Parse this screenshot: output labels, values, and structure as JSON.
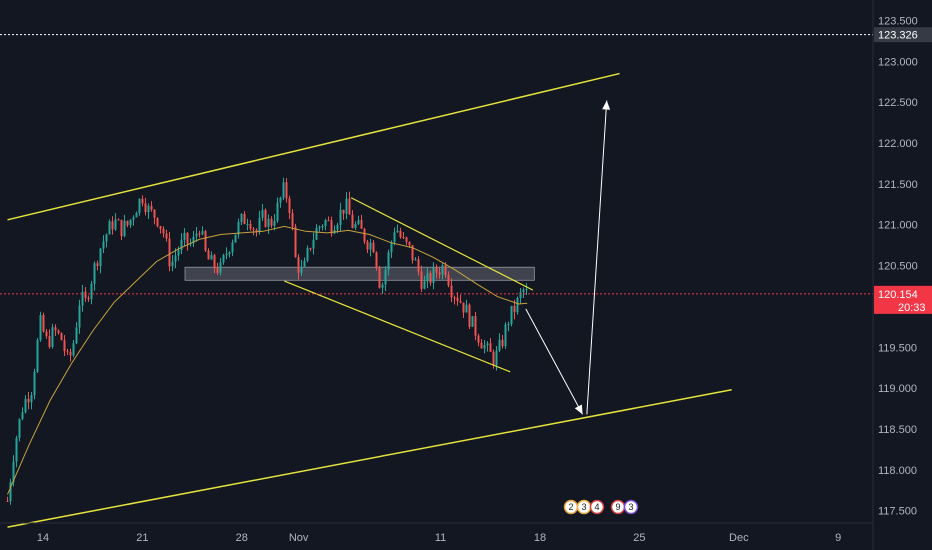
{
  "chart_data": {
    "type": "candlestick",
    "instrument_last_price": "120.154",
    "last_price_value": 120.154,
    "countdown": "20:33",
    "crosshair_price": "123.326",
    "crosshair_value": 123.326,
    "ylim": [
      117.35,
      123.75
    ],
    "y_ticks": [
      {
        "value": 117.5,
        "label": "117.500"
      },
      {
        "value": 118.0,
        "label": "118.000"
      },
      {
        "value": 118.5,
        "label": "118.500"
      },
      {
        "value": 119.0,
        "label": "119.000"
      },
      {
        "value": 119.5,
        "label": "119.500"
      },
      {
        "value": 120.0,
        "label": "120.000"
      },
      {
        "value": 120.5,
        "label": "120.500"
      },
      {
        "value": 121.0,
        "label": "121.000"
      },
      {
        "value": 121.5,
        "label": "121.500"
      },
      {
        "value": 122.0,
        "label": "122.000"
      },
      {
        "value": 122.5,
        "label": "122.500"
      },
      {
        "value": 123.0,
        "label": "123.000"
      },
      {
        "value": 123.5,
        "label": "123.500"
      }
    ],
    "x_day_range": [
      11.5,
      42.6
    ],
    "x_ticks": [
      {
        "day": 14,
        "label": "14"
      },
      {
        "day": 21,
        "label": "21"
      },
      {
        "day": 28,
        "label": "28"
      },
      {
        "day": 32,
        "label": "Nov"
      },
      {
        "day": 42,
        "label": "11"
      },
      {
        "day": 49,
        "label": "18"
      },
      {
        "day": 56,
        "label": "25"
      },
      {
        "day": 63,
        "label": "Dec"
      },
      {
        "day": 70,
        "label": "9"
      }
    ],
    "price_path": [
      [
        11.5,
        117.62
      ],
      [
        12.0,
        118.3
      ],
      [
        12.6,
        118.8
      ],
      [
        13.2,
        119.0
      ],
      [
        13.8,
        119.8
      ],
      [
        14.3,
        119.55
      ],
      [
        14.8,
        119.7
      ],
      [
        15.3,
        119.6
      ],
      [
        15.8,
        119.3
      ],
      [
        16.2,
        119.6
      ],
      [
        16.6,
        120.1
      ],
      [
        17.0,
        120.05
      ],
      [
        17.5,
        120.4
      ],
      [
        18.0,
        120.7
      ],
      [
        18.5,
        120.9
      ],
      [
        19.0,
        121.05
      ],
      [
        19.5,
        120.95
      ],
      [
        20.0,
        121.0
      ],
      [
        20.5,
        121.2
      ],
      [
        21.0,
        121.35
      ],
      [
        21.5,
        121.15
      ],
      [
        22.0,
        121.1
      ],
      [
        22.5,
        120.9
      ],
      [
        23.0,
        120.5
      ],
      [
        23.5,
        120.7
      ],
      [
        24.0,
        120.8
      ],
      [
        24.5,
        120.75
      ],
      [
        25.0,
        121.0
      ],
      [
        25.5,
        120.6
      ],
      [
        26.0,
        120.5
      ],
      [
        26.5,
        120.45
      ],
      [
        27.0,
        120.7
      ],
      [
        27.5,
        120.9
      ],
      [
        28.0,
        121.05
      ],
      [
        28.5,
        121.1
      ],
      [
        29.0,
        120.9
      ],
      [
        29.5,
        121.1
      ],
      [
        30.0,
        121.0
      ],
      [
        30.5,
        121.2
      ],
      [
        31.0,
        121.45
      ],
      [
        31.4,
        121.2
      ],
      [
        31.8,
        120.55
      ],
      [
        32.3,
        120.4
      ],
      [
        32.8,
        120.75
      ],
      [
        33.3,
        120.95
      ],
      [
        33.8,
        121.05
      ],
      [
        34.3,
        121.0
      ],
      [
        34.8,
        121.1
      ],
      [
        35.3,
        121.25
      ],
      [
        35.8,
        121.0
      ],
      [
        36.3,
        120.95
      ],
      [
        36.8,
        120.8
      ],
      [
        37.3,
        120.75
      ],
      [
        37.8,
        120.2
      ],
      [
        38.3,
        120.6
      ],
      [
        38.8,
        121.0
      ],
      [
        39.3,
        120.8
      ],
      [
        39.8,
        120.7
      ],
      [
        40.3,
        120.5
      ],
      [
        40.8,
        120.25
      ],
      [
        41.3,
        120.35
      ],
      [
        41.8,
        120.45
      ],
      [
        42.3,
        120.5
      ],
      [
        42.8,
        120.2
      ],
      [
        43.3,
        120.1
      ],
      [
        43.8,
        119.95
      ],
      [
        44.3,
        119.75
      ],
      [
        44.8,
        119.6
      ],
      [
        45.3,
        119.45
      ],
      [
        45.8,
        119.35
      ],
      [
        46.3,
        119.55
      ],
      [
        46.8,
        119.85
      ],
      [
        47.3,
        120.0
      ],
      [
        47.8,
        120.2
      ],
      [
        48.1,
        120.15
      ]
    ],
    "moving_average": [
      [
        11.5,
        117.7
      ],
      [
        13,
        118.3
      ],
      [
        14.5,
        118.85
      ],
      [
        16,
        119.3
      ],
      [
        17.5,
        119.7
      ],
      [
        19,
        120.05
      ],
      [
        20.5,
        120.3
      ],
      [
        22,
        120.55
      ],
      [
        23.5,
        120.7
      ],
      [
        25,
        120.82
      ],
      [
        26.5,
        120.88
      ],
      [
        28,
        120.9
      ],
      [
        29.5,
        120.92
      ],
      [
        31,
        120.98
      ],
      [
        32.5,
        120.92
      ],
      [
        34,
        120.9
      ],
      [
        35.5,
        120.93
      ],
      [
        37,
        120.88
      ],
      [
        38.5,
        120.78
      ],
      [
        40,
        120.72
      ],
      [
        41.5,
        120.6
      ],
      [
        43,
        120.45
      ],
      [
        44.5,
        120.28
      ],
      [
        46,
        120.12
      ],
      [
        47.5,
        120.03
      ],
      [
        48.1,
        120.04
      ]
    ],
    "drawings": {
      "upper_channel": {
        "from": [
          11.5,
          121.06
        ],
        "to": [
          54.6,
          122.85
        ]
      },
      "lower_channel": {
        "from": [
          11.5,
          117.3
        ],
        "to": [
          62.5,
          118.98
        ]
      },
      "wedge_upper": {
        "from": [
          35.7,
          121.33
        ],
        "to": [
          48.5,
          120.2
        ]
      },
      "wedge_lower": {
        "from": [
          31.0,
          120.31
        ],
        "to": [
          46.9,
          119.2
        ]
      },
      "support_zone": {
        "from_day": 24.0,
        "to_day": 48.6,
        "low": 120.32,
        "high": 120.48
      },
      "projection_down": {
        "from": [
          48.0,
          119.97
        ],
        "to": [
          52.0,
          118.68
        ]
      },
      "projection_up": {
        "from": [
          52.3,
          118.68
        ],
        "to": [
          53.7,
          122.52
        ]
      }
    },
    "event_markers": [
      "2",
      "3",
      "4",
      "9",
      "3"
    ],
    "colors": {
      "background": "#131722",
      "up": "#26a69a",
      "down": "#ef5350",
      "moving_average": "#c8a23c",
      "trendline": "#e6e33c",
      "projection": "#ffffff",
      "last_price": "#f23645",
      "crosshair": "#ffffff",
      "support_zone": "#787b86"
    }
  }
}
